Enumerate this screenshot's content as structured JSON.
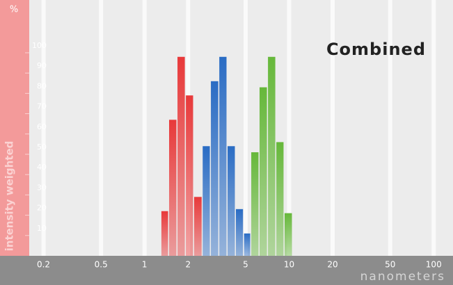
{
  "chart_data": {
    "type": "histogram",
    "title": "Combined",
    "y_unit": "%",
    "ylabel": "intensity weighted",
    "xlabel": "nanometers",
    "xscale": "log",
    "xlim": [
      0.1,
      136
    ],
    "ylim": [
      0,
      126
    ],
    "xticks": [
      0.2,
      0.5,
      1,
      2,
      5,
      10,
      20,
      50,
      100
    ],
    "yticks": [
      10,
      20,
      30,
      40,
      50,
      60,
      70,
      80,
      90,
      100
    ],
    "grid": true,
    "series": [
      {
        "color": "#e8393a",
        "bins": [
          1.3,
          1.47,
          1.68,
          1.92,
          2.19,
          2.51
        ],
        "values": [
          22,
          67,
          98,
          79,
          29
        ]
      },
      {
        "color": "#2a6cc4",
        "bins": [
          2.51,
          2.86,
          3.27,
          3.73,
          4.26,
          4.85,
          5.44
        ],
        "values": [
          54,
          86,
          98,
          54,
          23,
          11
        ]
      },
      {
        "color": "#66b83a",
        "bins": [
          5.44,
          6.21,
          7.1,
          8.11,
          9.25,
          10.57
        ],
        "values": [
          51,
          83,
          98,
          56,
          21
        ]
      }
    ]
  }
}
